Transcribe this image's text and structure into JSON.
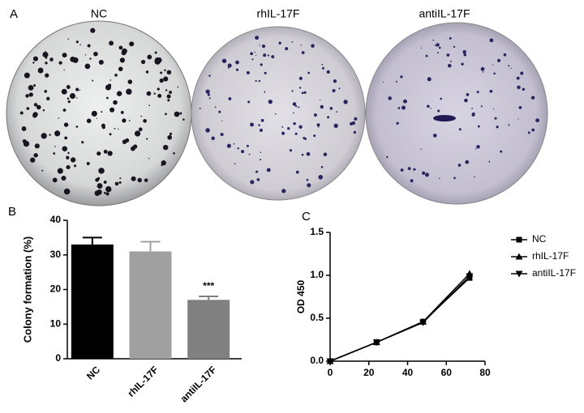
{
  "panel_a": {
    "label": "A",
    "plates": [
      "NC",
      "rhIL-17F",
      "antiIL-17F"
    ]
  },
  "chart_data": [
    {
      "type": "bar",
      "panel": "B",
      "ylabel": "Colony formation (%)",
      "categories": [
        "NC",
        "rhIL-17F",
        "antiIL-17F"
      ],
      "values": [
        33,
        31,
        17
      ],
      "errors": [
        2,
        2.8,
        1
      ],
      "colors": [
        "#000000",
        "#a0a0a0",
        "#808080"
      ],
      "annotations": [
        null,
        null,
        "***"
      ],
      "ylim": [
        0,
        40
      ],
      "yticks": [
        0,
        10,
        20,
        30,
        40
      ]
    },
    {
      "type": "line",
      "panel": "C",
      "ylabel": "OD 450",
      "x": [
        0,
        24,
        48,
        72
      ],
      "series": [
        {
          "name": "NC",
          "color": "#000000",
          "marker": "square",
          "values": [
            0,
            0.22,
            0.46,
            0.97
          ]
        },
        {
          "name": "rhIL-17F",
          "color": "#000000",
          "marker": "triangle-up",
          "values": [
            0,
            0.22,
            0.46,
            1.02
          ]
        },
        {
          "name": "antiIL-17F",
          "color": "#000000",
          "marker": "triangle-down",
          "values": [
            0,
            0.22,
            0.45,
            0.99
          ]
        }
      ],
      "xlim": [
        0,
        80
      ],
      "xticks": [
        0,
        20,
        40,
        60,
        80
      ],
      "ylim": [
        0,
        1.5
      ],
      "yticks": [
        {
          "value": 0,
          "label": "0.0"
        },
        0.5,
        {
          "value": 1,
          "label": "1.0"
        },
        {
          "value": 1.5,
          "label": "1.5"
        }
      ],
      "legend": "right"
    }
  ]
}
